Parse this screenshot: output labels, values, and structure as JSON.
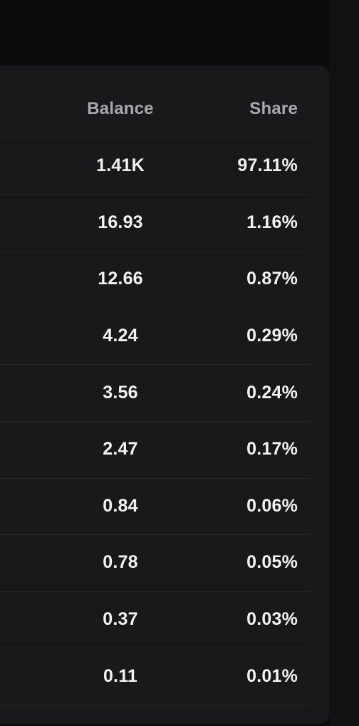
{
  "table": {
    "columns": {
      "balance": "Balance",
      "share": "Share"
    },
    "rows": [
      {
        "balance": "1.41K",
        "share": "97.11%"
      },
      {
        "balance": "16.93",
        "share": "1.16%"
      },
      {
        "balance": "12.66",
        "share": "0.87%"
      },
      {
        "balance": "4.24",
        "share": "0.29%"
      },
      {
        "balance": "3.56",
        "share": "0.24%"
      },
      {
        "balance": "2.47",
        "share": "0.17%"
      },
      {
        "balance": "0.84",
        "share": "0.06%"
      },
      {
        "balance": "0.78",
        "share": "0.05%"
      },
      {
        "balance": "0.37",
        "share": "0.03%"
      },
      {
        "balance": "0.11",
        "share": "0.01%"
      }
    ]
  },
  "colors": {
    "background": "#0c0c0d",
    "card": "#19191b",
    "divider": "#252528",
    "header_text": "#a9a9ad",
    "value_text": "#f2f2f3"
  }
}
